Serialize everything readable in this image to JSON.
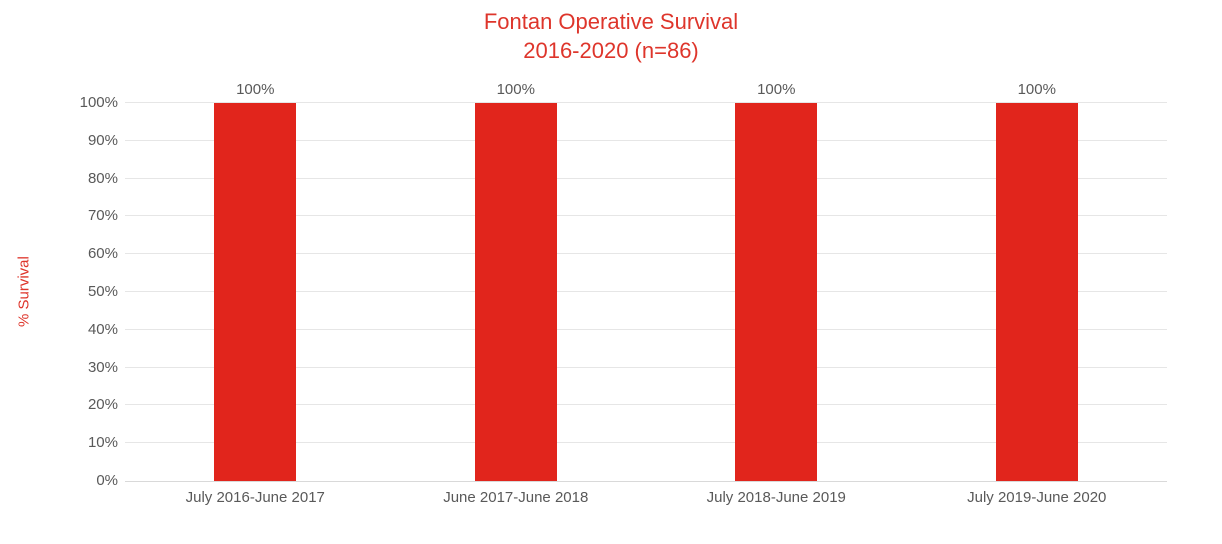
{
  "title": {
    "line1": "Fontan Operative Survival",
    "line2": "2016-2020 (n=86)"
  },
  "chart_data": {
    "type": "bar",
    "title": "Fontan Operative Survival 2016-2020 (n=86)",
    "categories": [
      "July 2016-June 2017",
      "June 2017-June 2018",
      "July 2018-June 2019",
      "July 2019-June 2020"
    ],
    "values": [
      100,
      100,
      100,
      100
    ],
    "data_labels": [
      "100%",
      "100%",
      "100%",
      "100%"
    ],
    "xlabel": "",
    "ylabel": "% Survival",
    "ylim": [
      0,
      100
    ],
    "ytick_step": 10,
    "ytick_labels": [
      "0%",
      "10%",
      "20%",
      "30%",
      "40%",
      "50%",
      "60%",
      "70%",
      "80%",
      "90%",
      "100%"
    ],
    "grid": true,
    "legend_position": "none",
    "colors": {
      "bar": "#E1251C",
      "title_text": "#DE352B",
      "y_axis_title_text": "#DE352B",
      "axis_text": "#595959",
      "gridline": "#E6E6E6",
      "baseline": "#D9D9D9",
      "background": "#FFFFFF"
    }
  }
}
